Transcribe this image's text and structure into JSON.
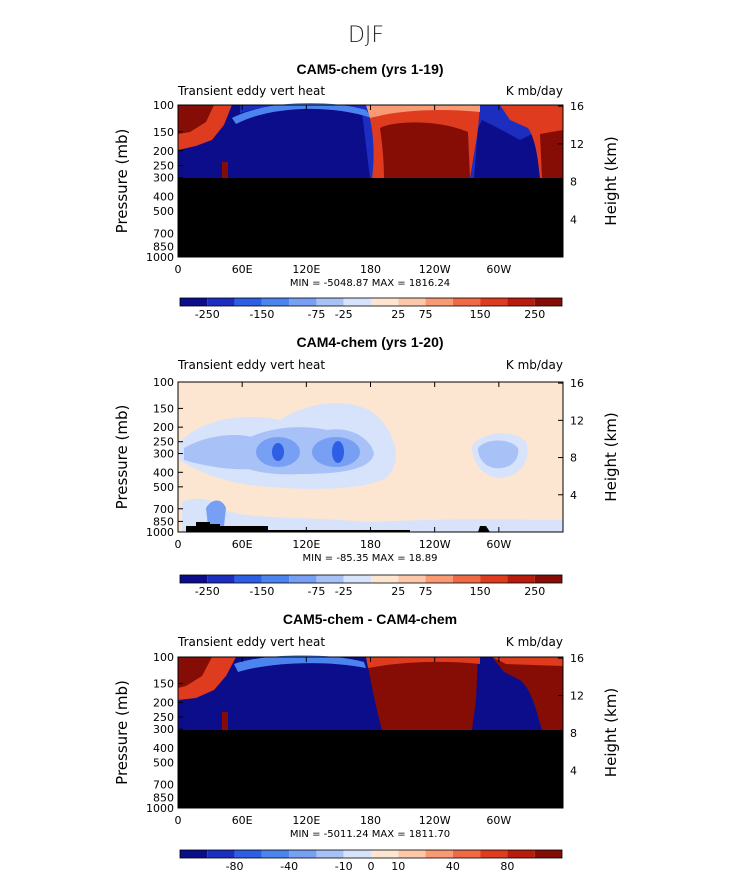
{
  "figure": {
    "title": "DJF"
  },
  "colors": {
    "negative": [
      "#0c0d8a",
      "#1c2ec0",
      "#2d5ee4",
      "#4b84ef",
      "#779ff3",
      "#a8c2f8",
      "#d7e3fb"
    ],
    "positive": [
      "#fde6d1",
      "#fcc8a9",
      "#f89a73",
      "#ef6a44",
      "#de3b1f",
      "#b71c0c",
      "#850d06"
    ],
    "topography": "#000000"
  },
  "chart_data": [
    {
      "type": "heatmap",
      "title": "CAM5-chem (yrs 1-19)",
      "left_label": "Transient eddy vert heat",
      "right_label": "K mb/day",
      "ylabel": "Pressure (mb)",
      "ylabel_right": "Height (km)",
      "x_ticks": [
        "0",
        "60E",
        "120E",
        "180",
        "120W",
        "60W"
      ],
      "y_ticks": [
        "100",
        "150",
        "200",
        "250",
        "300",
        "400",
        "500",
        "700",
        "850",
        "1000"
      ],
      "y_ticks_right": [
        "16",
        "12",
        "8",
        "4"
      ],
      "stats": "MIN = -5048.87   MAX = 1816.24",
      "colorbar_labels": [
        "-250",
        "-150",
        "-75",
        "-25",
        "25",
        "75",
        "150",
        "250"
      ],
      "min": -5048.87,
      "max": 1816.24,
      "masked_below_mb": 300
    },
    {
      "type": "heatmap",
      "title": "CAM4-chem (yrs 1-20)",
      "left_label": "Transient eddy vert heat",
      "right_label": "K mb/day",
      "ylabel": "Pressure (mb)",
      "ylabel_right": "Height (km)",
      "x_ticks": [
        "0",
        "60E",
        "120E",
        "180",
        "120W",
        "60W"
      ],
      "y_ticks": [
        "100",
        "150",
        "200",
        "250",
        "300",
        "400",
        "500",
        "700",
        "850",
        "1000"
      ],
      "y_ticks_right": [
        "16",
        "12",
        "8",
        "4"
      ],
      "stats": "MIN = -85.35   MAX =  18.89",
      "colorbar_labels": [
        "-250",
        "-150",
        "-75",
        "-25",
        "25",
        "75",
        "150",
        "250"
      ],
      "min": -85.35,
      "max": 18.89
    },
    {
      "type": "heatmap",
      "title": "CAM5-chem - CAM4-chem",
      "left_label": "Transient eddy vert heat",
      "right_label": "K mb/day",
      "ylabel": "Pressure (mb)",
      "ylabel_right": "Height (km)",
      "x_ticks": [
        "0",
        "60E",
        "120E",
        "180",
        "120W",
        "60W"
      ],
      "y_ticks": [
        "100",
        "150",
        "200",
        "250",
        "300",
        "400",
        "500",
        "700",
        "850",
        "1000"
      ],
      "y_ticks_right": [
        "16",
        "12",
        "8",
        "4"
      ],
      "stats": "MIN = -5011.24   MAX = 1811.70",
      "colorbar_labels": [
        "-80",
        "-40",
        "-10",
        "0",
        "10",
        "40",
        "80"
      ],
      "min": -5011.24,
      "max": 1811.7,
      "masked_below_mb": 300
    }
  ]
}
